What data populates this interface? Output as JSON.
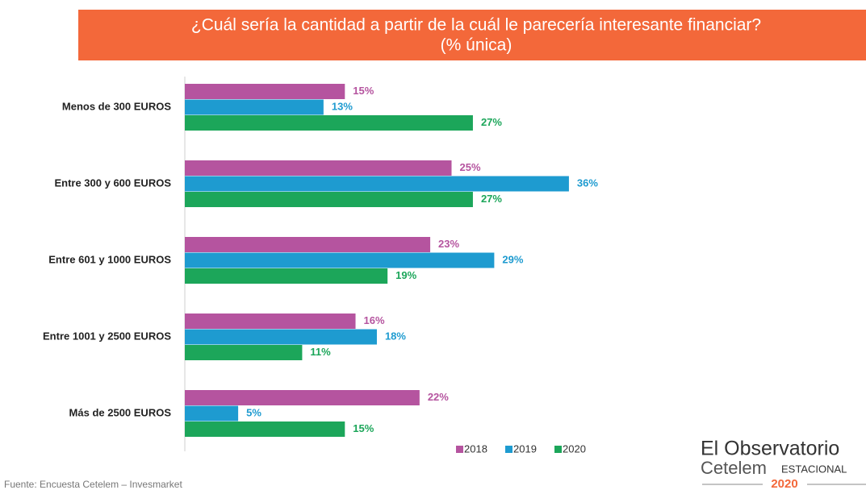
{
  "chart_data": {
    "type": "hbar",
    "title": "¿Cuál sería la cantidad a partir de la cuál le parecería interesante financiar?",
    "subtitle": "(% única)",
    "categories": [
      "Menos de 300 EUROS",
      "Entre 300 y 600 EUROS",
      "Entre 601 y 1000 EUROS",
      "Entre 1001 y 2500 EUROS",
      "Más de 2500 EUROS"
    ],
    "series": [
      {
        "name": "2018",
        "color": "#b5549f",
        "values": [
          15,
          25,
          23,
          16,
          22
        ],
        "value_labels": [
          "15%",
          "25%",
          "23%",
          "16%",
          "22%"
        ]
      },
      {
        "name": "2019",
        "color": "#1e9bd0",
        "values": [
          13,
          36,
          29,
          18,
          5
        ],
        "value_labels": [
          "13%",
          "36%",
          "29%",
          "18%",
          "5%"
        ]
      },
      {
        "name": "2020",
        "color": "#1ca65a",
        "values": [
          27,
          27,
          19,
          11,
          15
        ],
        "value_labels": [
          "27%",
          "27%",
          "19%",
          "11%",
          "15%"
        ]
      }
    ],
    "source": "Fuente: Encuesta Cetelem – Invesmarket",
    "logo": {
      "line1": "El Observatorio",
      "line2": "Cetelem",
      "line3": "ESTACIONAL",
      "year": "2020"
    }
  }
}
